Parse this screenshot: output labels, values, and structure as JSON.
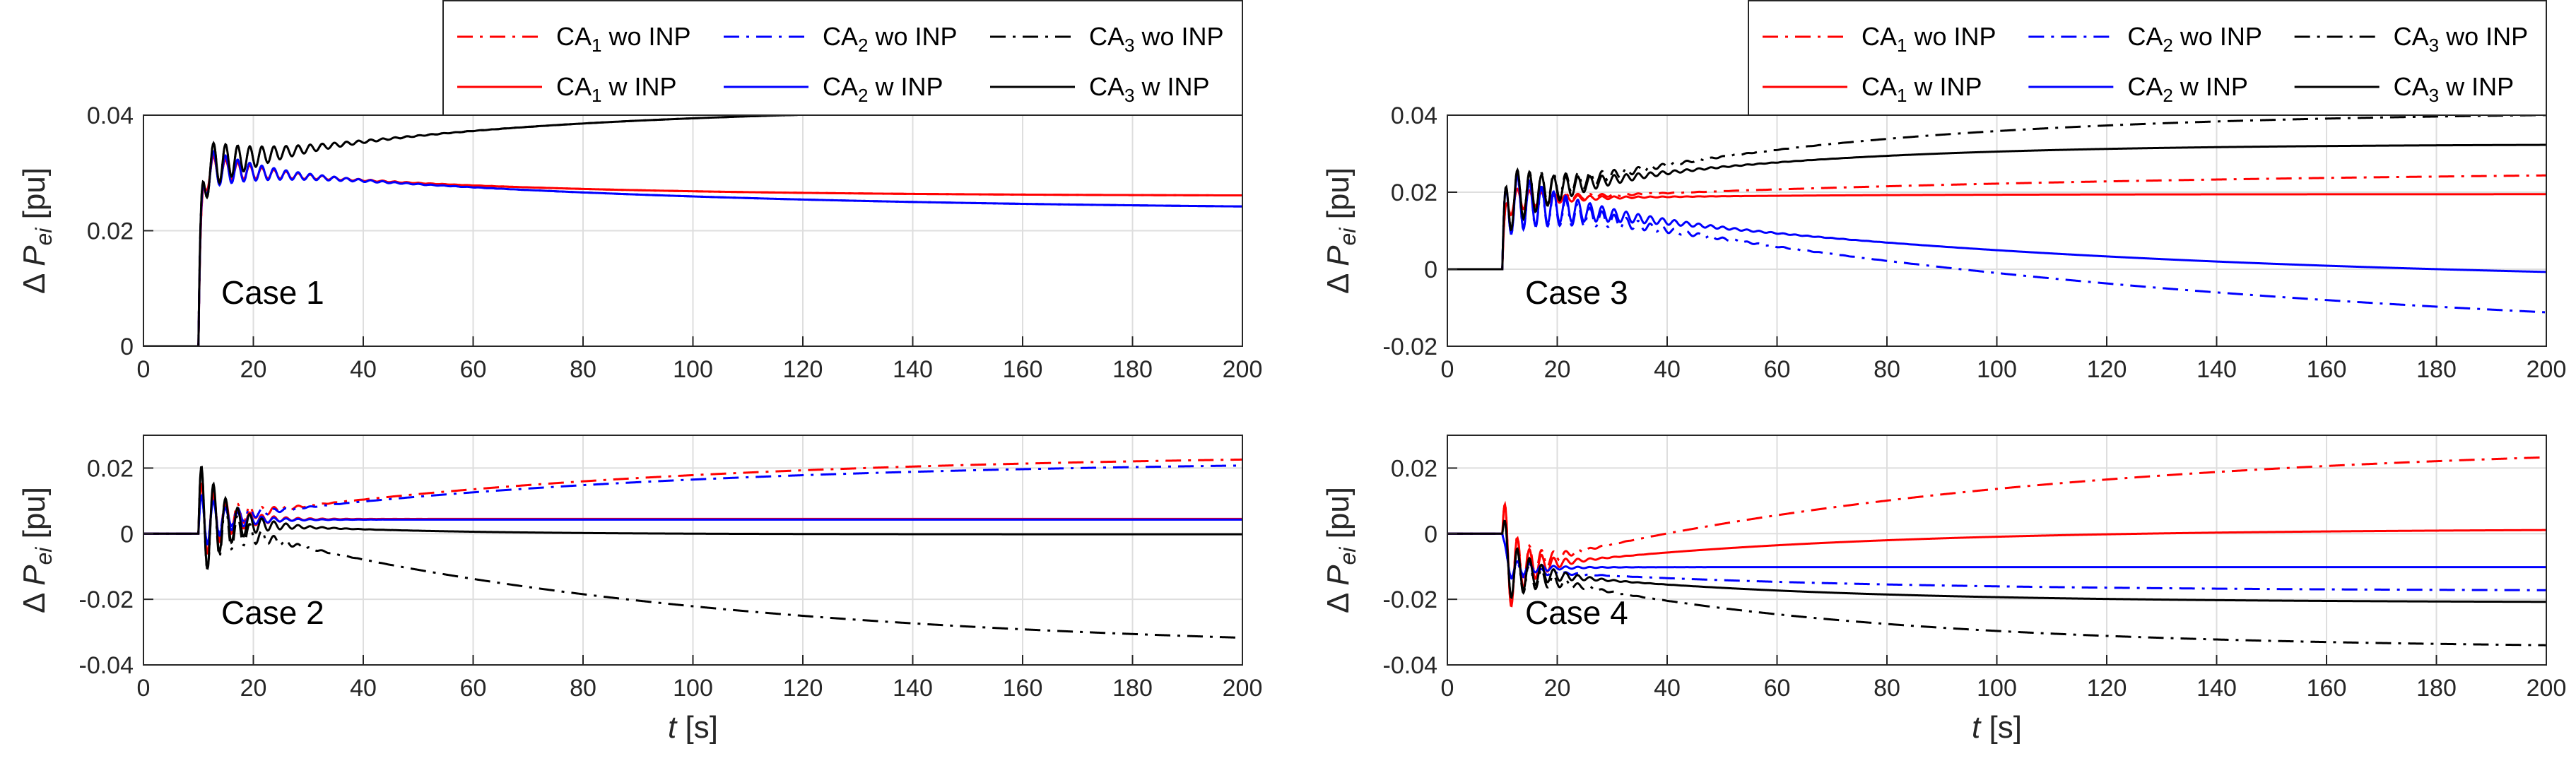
{
  "figure": {
    "ylabel_main": "Δ P",
    "ylabel_sub": "ei",
    "ylabel_unit": "[pu]",
    "xlabel_var": "t",
    "xlabel_unit": "[s]"
  },
  "legend_entries": [
    {
      "prefix": "CA",
      "sub": "1",
      "suffix": "wo INP",
      "color": "#ff0000",
      "dash": "dashdot"
    },
    {
      "prefix": "CA",
      "sub": "2",
      "suffix": "wo INP",
      "color": "#0000ff",
      "dash": "dashdot"
    },
    {
      "prefix": "CA",
      "sub": "3",
      "suffix": "wo INP",
      "color": "#000000",
      "dash": "dashdot"
    },
    {
      "prefix": "CA",
      "sub": "1",
      "suffix": "w INP",
      "color": "#ff0000",
      "dash": "solid"
    },
    {
      "prefix": "CA",
      "sub": "2",
      "suffix": "w INP",
      "color": "#0000ff",
      "dash": "solid"
    },
    {
      "prefix": "CA",
      "sub": "3",
      "suffix": "w INP",
      "color": "#000000",
      "dash": "solid"
    }
  ],
  "chart_data": [
    {
      "type": "line",
      "panel": "top-left",
      "label": "Case 1",
      "xlim": [
        0,
        200
      ],
      "ylim": [
        0,
        0.04
      ],
      "xticks": [
        0,
        20,
        40,
        60,
        80,
        100,
        120,
        140,
        160,
        180,
        200
      ],
      "xtick_labels": [
        "0",
        "20",
        "40",
        "60",
        "80",
        "100",
        "120",
        "140",
        "160",
        "180",
        "200"
      ],
      "yticks": [
        0,
        0.02,
        0.04
      ],
      "ytick_labels": [
        "0",
        "0.02",
        "0.04"
      ],
      "grid": true,
      "show_legend": true,
      "series": [
        {
          "name": "CA1 wo INP",
          "color": "#ff0000",
          "dash": "dashdot",
          "t0": 10,
          "final": 0.026,
          "tau": 50,
          "osc_amp": 0.003,
          "osc_decay": 10
        },
        {
          "name": "CA2 wo INP",
          "color": "#0000ff",
          "dash": "dashdot",
          "t0": 10,
          "final": 0.0235,
          "tau": 80,
          "osc_amp": 0.004,
          "osc_decay": 10
        },
        {
          "name": "CA3 wo INP",
          "color": "#000000",
          "dash": "dashdot",
          "t0": 10,
          "final": 0.0415,
          "tau": 55,
          "osc_amp": 0.005,
          "osc_decay": 10
        },
        {
          "name": "CA1 w INP",
          "color": "#ff0000",
          "dash": "solid",
          "t0": 10,
          "final": 0.026,
          "tau": 50,
          "osc_amp": 0.003,
          "osc_decay": 10
        },
        {
          "name": "CA2 w INP",
          "color": "#0000ff",
          "dash": "solid",
          "t0": 10,
          "final": 0.0235,
          "tau": 80,
          "osc_amp": 0.004,
          "osc_decay": 10
        },
        {
          "name": "CA3 w INP",
          "color": "#000000",
          "dash": "solid",
          "t0": 10,
          "final": 0.0415,
          "tau": 55,
          "osc_amp": 0.005,
          "osc_decay": 10
        }
      ]
    },
    {
      "type": "line",
      "panel": "top-right",
      "label": "Case 3",
      "xlim": [
        0,
        200
      ],
      "ylim": [
        -0.02,
        0.04
      ],
      "xticks": [
        0,
        20,
        40,
        60,
        80,
        100,
        120,
        140,
        160,
        180,
        200
      ],
      "xtick_labels": [
        "0",
        "20",
        "40",
        "60",
        "80",
        "100",
        "120",
        "140",
        "160",
        "180",
        "200"
      ],
      "yticks": [
        -0.02,
        0,
        0.02,
        0.04
      ],
      "ytick_labels": [
        "-0.02",
        "0",
        "0.02",
        "0.04"
      ],
      "grid": true,
      "show_legend": true,
      "series": [
        {
          "name": "CA1 wo INP",
          "color": "#ff0000",
          "dash": "dashdot",
          "t0": 10,
          "final": 0.026,
          "tau": 120,
          "osc_amp": 0.004,
          "osc_decay": 8
        },
        {
          "name": "CA2 wo INP",
          "color": "#0000ff",
          "dash": "dashdot",
          "t0": 10,
          "final": -0.02,
          "tau": 130,
          "osc_amp": 0.009,
          "osc_decay": 12
        },
        {
          "name": "CA3 wo INP",
          "color": "#000000",
          "dash": "dashdot",
          "t0": 10,
          "final": 0.041,
          "tau": 60,
          "osc_amp": 0.009,
          "osc_decay": 10
        },
        {
          "name": "CA1 w INP",
          "color": "#ff0000",
          "dash": "solid",
          "t0": 10,
          "final": 0.0195,
          "tau": 40,
          "osc_amp": 0.004,
          "osc_decay": 8
        },
        {
          "name": "CA2 w INP",
          "color": "#0000ff",
          "dash": "solid",
          "t0": 10,
          "final": -0.004,
          "tau": 100,
          "osc_amp": 0.009,
          "osc_decay": 12
        },
        {
          "name": "CA3 w INP",
          "color": "#000000",
          "dash": "solid",
          "t0": 10,
          "final": 0.0325,
          "tau": 45,
          "osc_amp": 0.009,
          "osc_decay": 10
        }
      ]
    },
    {
      "type": "line",
      "panel": "bottom-left",
      "label": "Case 2",
      "xlim": [
        0,
        200
      ],
      "ylim": [
        -0.04,
        0.03
      ],
      "xticks": [
        0,
        20,
        40,
        60,
        80,
        100,
        120,
        140,
        160,
        180,
        200
      ],
      "xtick_labels": [
        "0",
        "20",
        "40",
        "60",
        "80",
        "100",
        "120",
        "140",
        "160",
        "180",
        "200"
      ],
      "yticks": [
        -0.04,
        -0.02,
        0,
        0.02
      ],
      "ytick_labels": [
        "-0.04",
        "-0.02",
        "0",
        "0.02"
      ],
      "grid": true,
      "show_legend": false,
      "series": [
        {
          "name": "CA1 wo INP",
          "color": "#ff0000",
          "dash": "dashdot",
          "t0": 10,
          "final": 0.0245,
          "tau": 80,
          "osc_amp": 0.014,
          "osc_decay": 5
        },
        {
          "name": "CA2 wo INP",
          "color": "#0000ff",
          "dash": "dashdot",
          "t0": 10,
          "final": 0.0225,
          "tau": 80,
          "osc_amp": 0.01,
          "osc_decay": 5
        },
        {
          "name": "CA3 wo INP",
          "color": "#000000",
          "dash": "dashdot",
          "t0": 10,
          "final": -0.036,
          "tau": 85,
          "osc_amp": 0.02,
          "osc_decay": 5
        },
        {
          "name": "CA1 w INP",
          "color": "#ff0000",
          "dash": "solid",
          "t0": 10,
          "final": 0.0045,
          "tau": 10,
          "osc_amp": 0.014,
          "osc_decay": 5
        },
        {
          "name": "CA2 w INP",
          "color": "#0000ff",
          "dash": "solid",
          "t0": 10,
          "final": 0.0043,
          "tau": 10,
          "osc_amp": 0.01,
          "osc_decay": 5
        },
        {
          "name": "CA3 w INP",
          "color": "#000000",
          "dash": "solid",
          "t0": 10,
          "final": -0.0002,
          "tau": 30,
          "osc_amp": 0.02,
          "osc_decay": 5
        }
      ]
    },
    {
      "type": "line",
      "panel": "bottom-right",
      "label": "Case 4",
      "xlim": [
        0,
        200
      ],
      "ylim": [
        -0.04,
        0.03
      ],
      "xticks": [
        0,
        20,
        40,
        60,
        80,
        100,
        120,
        140,
        160,
        180,
        200
      ],
      "xtick_labels": [
        "0",
        "20",
        "40",
        "60",
        "80",
        "100",
        "120",
        "140",
        "160",
        "180",
        "200"
      ],
      "yticks": [
        -0.04,
        -0.02,
        0,
        0.02
      ],
      "ytick_labels": [
        "-0.04",
        "-0.02",
        "0",
        "0.02"
      ],
      "grid": true,
      "show_legend": false,
      "series": [
        {
          "name": "CA1 wo INP",
          "color": "#ff0000",
          "dash": "dashdot",
          "t0": 10,
          "final": 0.028,
          "tau": 90,
          "osc_amp": 0.018,
          "osc_decay": 4
        },
        {
          "name": "CA2 wo INP",
          "color": "#0000ff",
          "dash": "dashdot",
          "t0": 10,
          "final": -0.0175,
          "tau": 60,
          "osc_amp": 0.004,
          "osc_decay": 5
        },
        {
          "name": "CA3 wo INP",
          "color": "#000000",
          "dash": "dashdot",
          "t0": 10,
          "final": -0.035,
          "tau": 60,
          "osc_amp": 0.012,
          "osc_decay": 5
        },
        {
          "name": "CA1 w INP",
          "color": "#ff0000",
          "dash": "solid",
          "t0": 10,
          "final": 0.0015,
          "tau": 55,
          "osc_amp": 0.018,
          "osc_decay": 4
        },
        {
          "name": "CA2 w INP",
          "color": "#0000ff",
          "dash": "solid",
          "t0": 10,
          "final": -0.0102,
          "tau": 8,
          "osc_amp": 0.004,
          "osc_decay": 5
        },
        {
          "name": "CA3 w INP",
          "color": "#000000",
          "dash": "solid",
          "t0": 10,
          "final": -0.021,
          "tau": 50,
          "osc_amp": 0.012,
          "osc_decay": 5
        }
      ]
    }
  ]
}
